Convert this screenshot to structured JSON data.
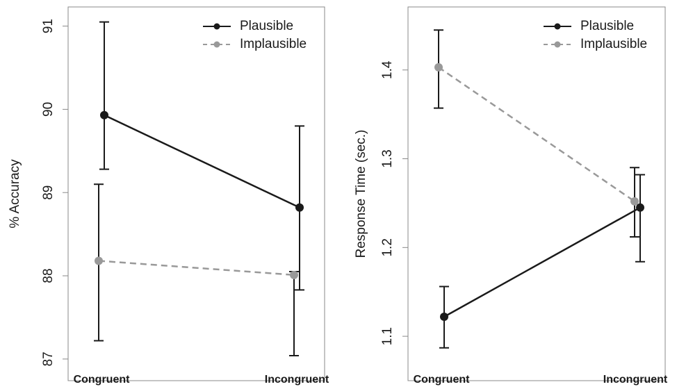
{
  "chart_data": [
    {
      "type": "line",
      "ylabel": "% Accuracy",
      "categories": [
        "Congruent",
        "Incongruent"
      ],
      "ylim": [
        86.74,
        91.23
      ],
      "yticks": [
        87,
        88,
        89,
        90,
        91
      ],
      "legend": "upper right",
      "series": [
        {
          "name": "Plausible",
          "color": "#1a1a1a",
          "dash": false,
          "values": [
            89.93,
            88.82
          ],
          "ci_low": [
            89.28,
            87.83
          ],
          "ci_high": [
            91.05,
            89.8
          ]
        },
        {
          "name": "Implausible",
          "color": "#999999",
          "dash": true,
          "values": [
            88.18,
            88.01
          ],
          "ci_low": [
            87.22,
            87.04
          ],
          "ci_high": [
            89.1,
            88.05
          ]
        }
      ]
    },
    {
      "type": "line",
      "ylabel": "Response Time (sec.)",
      "categories": [
        "Congruent",
        "Incongruent"
      ],
      "ylim": [
        1.05,
        1.471
      ],
      "yticks": [
        1.1,
        1.2,
        1.3,
        1.4
      ],
      "legend": "upper right",
      "series": [
        {
          "name": "Plausible",
          "color": "#1a1a1a",
          "dash": false,
          "values": [
            1.122,
            1.245
          ],
          "ci_low": [
            1.087,
            1.184
          ],
          "ci_high": [
            1.156,
            1.282
          ]
        },
        {
          "name": "Implausible",
          "color": "#999999",
          "dash": true,
          "values": [
            1.403,
            1.252
          ],
          "ci_low": [
            1.357,
            1.212
          ],
          "ci_high": [
            1.445,
            1.29
          ]
        }
      ]
    }
  ]
}
